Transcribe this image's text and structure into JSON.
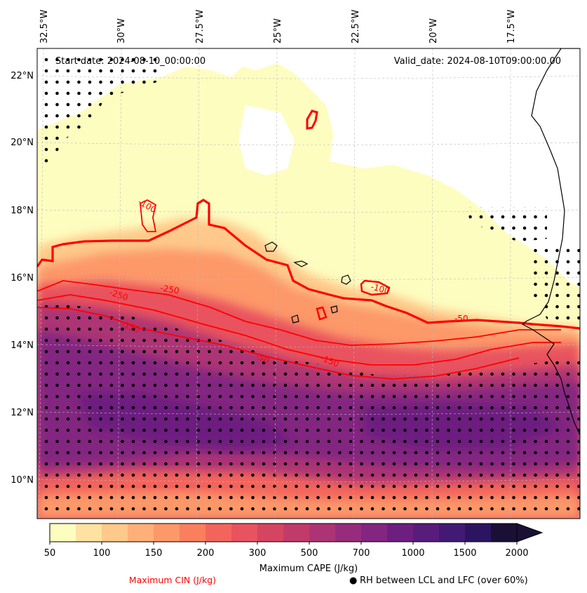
{
  "map": {
    "start_date": "Start date: 2024-08-10_00:00:00",
    "valid_date": "Valid_date: 2024-08-10T09:00:00.00",
    "lon_labels": [
      "32.5°W",
      "30°W",
      "27.5°W",
      "25°W",
      "22.5°W",
      "20°W",
      "17.5°W"
    ],
    "lat_labels": [
      "22°N",
      "20°N",
      "18°N",
      "16°N",
      "14°N",
      "12°N",
      "10°N"
    ],
    "contour_labels": [
      "-250",
      "-250",
      "-150",
      "-50",
      "-150",
      "-100",
      "-100",
      "-50"
    ]
  },
  "colorbar": {
    "title": "Maximum CAPE (J/kg)",
    "ticks": [
      "50",
      "100",
      "150",
      "200",
      "300",
      "500",
      "700",
      "1000",
      "1500",
      "2000"
    ],
    "colors": [
      "#fcfdbf",
      "#fee2a1",
      "#fec98a",
      "#feb078",
      "#fd9869",
      "#fa7f5e",
      "#f3655c",
      "#e8535f",
      "#d54562",
      "#c13b6a",
      "#ad3474",
      "#972c7c",
      "#832681",
      "#6d1f80",
      "#581c7c",
      "#421a73",
      "#2c1560",
      "#1a1036"
    ]
  },
  "legend": {
    "cin_label": "Maximum CIN (J/kg)",
    "rh_label": "RH between LCL and LFC (over 60%)",
    "rh_symbol": "●",
    "cin_color": "#ff0000"
  }
}
